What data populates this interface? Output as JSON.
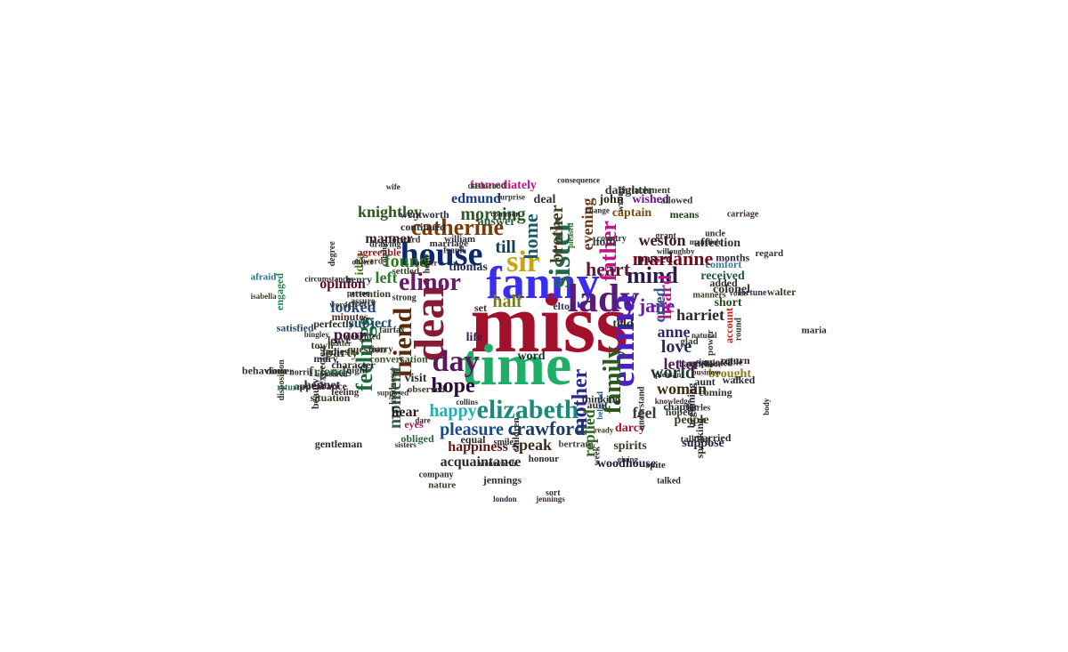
{
  "words": [
    {
      "text": "miss",
      "color": "#a3102c"
    },
    {
      "text": "time",
      "color": "#1fae66"
    },
    {
      "text": "fanny",
      "color": "#3b2df0"
    },
    {
      "text": "dear",
      "color": "#8a1a33"
    },
    {
      "text": "lady",
      "color": "#5a1a7a"
    },
    {
      "text": "house",
      "color": "#0b2a6b"
    },
    {
      "text": "sir",
      "color": "#c9a40a"
    },
    {
      "text": "emma",
      "color": "#4b1ec8"
    },
    {
      "text": "elizabeth",
      "color": "#1a8a7a"
    },
    {
      "text": "day",
      "color": "#5a1a5a"
    },
    {
      "text": "sister",
      "color": "#1f6a4a"
    },
    {
      "text": "friend",
      "color": "#5a2a0a"
    },
    {
      "text": "elinor",
      "color": "#6a1a6a"
    },
    {
      "text": "family",
      "color": "#2a5a1a"
    },
    {
      "text": "mother",
      "color": "#2a2a8a"
    },
    {
      "text": "catherine",
      "color": "#7a3a0a"
    },
    {
      "text": "feelings",
      "color": "#1a6a3a"
    },
    {
      "text": "father",
      "color": "#c0148a"
    },
    {
      "text": "mind",
      "color": "#2a1a4a"
    },
    {
      "text": "hope",
      "color": "#2a0a3a"
    },
    {
      "text": "moment",
      "color": "#3a5a4a"
    },
    {
      "text": "home",
      "color": "#1a5a6a"
    },
    {
      "text": "heart",
      "color": "#5a1a3a"
    },
    {
      "text": "marianne",
      "color": "#7a0a1a"
    },
    {
      "text": "crawford",
      "color": "#1a3a6a"
    },
    {
      "text": "jane",
      "color": "#6a1aa0"
    },
    {
      "text": "happy",
      "color": "#20b0b0"
    },
    {
      "text": "pleasure",
      "color": "#1a4a8a"
    },
    {
      "text": "replied",
      "color": "#2a6a1a"
    },
    {
      "text": "heard",
      "color": "#c0148a"
    },
    {
      "text": "brother",
      "color": "#4a3a1a"
    },
    {
      "text": "found",
      "color": "#2a7a1a"
    },
    {
      "text": "till",
      "color": "#1a3a5a"
    },
    {
      "text": "morning",
      "color": "#2a5a2a"
    },
    {
      "text": "love",
      "color": "#2a2a5a"
    },
    {
      "text": "world",
      "color": "#1a3a3a"
    },
    {
      "text": "half",
      "color": "#7a7a1a"
    },
    {
      "text": "looked",
      "color": "#2a4a8a"
    },
    {
      "text": "poor",
      "color": "#3a0a3a"
    },
    {
      "text": "left",
      "color": "#2a7a2a"
    },
    {
      "text": "speak",
      "color": "#3a2a1a"
    },
    {
      "text": "feel",
      "color": "#3a3a3a"
    },
    {
      "text": "letter",
      "color": "#5a1a5a"
    },
    {
      "text": "anne",
      "color": "#2a2a6a"
    },
    {
      "text": "harriet",
      "color": "#2a2a2a"
    },
    {
      "text": "woman",
      "color": "#3a2a0a"
    },
    {
      "text": "cried",
      "color": "#2a5a8a"
    },
    {
      "text": "weston",
      "color": "#3a1a1a"
    },
    {
      "text": "evening",
      "color": "#6a3a1a"
    },
    {
      "text": "knightley",
      "color": "#2a5a1a"
    },
    {
      "text": "manner",
      "color": "#3a1a2a"
    },
    {
      "text": "edmund",
      "color": "#1a3a8a"
    },
    {
      "text": "happiness",
      "color": "#5a1a1a"
    },
    {
      "text": "acquaintance",
      "color": "#2a2a2a"
    },
    {
      "text": "hear",
      "color": "#2a1a1a"
    },
    {
      "text": "party",
      "color": "#4a4a1a"
    },
    {
      "text": "subject",
      "color": "#1a4a6a"
    },
    {
      "text": "opinion",
      "color": "#5a0a2a"
    },
    {
      "text": "friends",
      "color": "#2a6a2a"
    },
    {
      "text": "idea",
      "color": "#4a7a1a"
    },
    {
      "text": "thomas",
      "color": "#2a2a4a"
    },
    {
      "text": "life",
      "color": "#3a1a4a"
    },
    {
      "text": "told",
      "color": "#1a3a2a"
    },
    {
      "text": "people",
      "color": "#3a3a1a"
    },
    {
      "text": "suppose",
      "color": "#2a1a3a"
    },
    {
      "text": "spirits",
      "color": "#3a3a2a"
    },
    {
      "text": "darcy",
      "color": "#a01a2a"
    },
    {
      "text": "woodhouse",
      "color": "#1a1a3a"
    },
    {
      "text": "captain",
      "color": "#7a4a0a"
    },
    {
      "text": "immediately",
      "color": "#c0148a"
    },
    {
      "text": "deal",
      "color": "#3a2a3a"
    },
    {
      "text": "answer",
      "color": "#2a5a3a"
    },
    {
      "text": "visit",
      "color": "#2a2a3a"
    },
    {
      "text": "word",
      "color": "#1a2a2a"
    },
    {
      "text": "brought",
      "color": "#8a7a1a"
    },
    {
      "text": "short",
      "color": "#2a4a1a"
    },
    {
      "text": "received",
      "color": "#1a5a3a"
    },
    {
      "text": "colonel",
      "color": "#2a3a2a"
    },
    {
      "text": "affection",
      "color": "#3a2a2a"
    },
    {
      "text": "passed",
      "color": "#3a1a3a"
    },
    {
      "text": "john",
      "color": "#2a2a1a"
    },
    {
      "text": "hour",
      "color": "#3a3a3a"
    },
    {
      "text": "daughter",
      "color": "#2a3a3a"
    },
    {
      "text": "wished",
      "color": "#6a1a8a"
    },
    {
      "text": "means",
      "color": "#1a3a1a"
    },
    {
      "text": "bennet",
      "color": "#3a1a4a"
    },
    {
      "text": "situation",
      "color": "#2a3a1a"
    },
    {
      "text": "attention",
      "color": "#3a3a2a"
    },
    {
      "text": "character",
      "color": "#2a2a2a"
    },
    {
      "text": "minutes",
      "color": "#4a2a1a"
    },
    {
      "text": "pretty",
      "color": "#3a3a3a"
    },
    {
      "text": "henry",
      "color": "#2a3a4a"
    },
    {
      "text": "chapter",
      "color": "#1a2a2a"
    },
    {
      "text": "aunt",
      "color": "#2a2a2a"
    },
    {
      "text": "coming",
      "color": "#2a3a2a"
    },
    {
      "text": "return",
      "color": "#3a1a1a"
    },
    {
      "text": "walked",
      "color": "#2a2a3a"
    },
    {
      "text": "comfort",
      "color": "#3a7a9a"
    },
    {
      "text": "added",
      "color": "#3a2a2a"
    },
    {
      "text": "account",
      "color": "#c01a1a"
    },
    {
      "text": "eyes",
      "color": "#a01a5a"
    },
    {
      "text": "obliged",
      "color": "#2a6a3a"
    },
    {
      "text": "mary",
      "color": "#2a2a5a"
    },
    {
      "text": "leave",
      "color": "#3a2a2a"
    },
    {
      "text": "ladies",
      "color": "#2a2a3a"
    },
    {
      "text": "town",
      "color": "#3a3a2a"
    },
    {
      "text": "set",
      "color": "#3a2a2a"
    },
    {
      "text": "elton",
      "color": "#3a2a4a"
    },
    {
      "text": "bingley",
      "color": "#2a3a2a"
    },
    {
      "text": "elliot",
      "color": "#2a6a3a"
    },
    {
      "text": "edward",
      "color": "#5a3a1a"
    },
    {
      "text": "frank",
      "color": "#3a2a3a"
    },
    {
      "text": "william",
      "color": "#2a2a3a"
    },
    {
      "text": "aunt",
      "color": "#2a2a2a"
    },
    {
      "text": "hoped",
      "color": "#3a3a3a"
    },
    {
      "text": "feeling",
      "color": "#3a2a2a"
    },
    {
      "text": "talked",
      "color": "#2a2a2a"
    },
    {
      "text": "person",
      "color": "#2a2a3a"
    },
    {
      "text": "dare",
      "color": "#3a1a1a"
    },
    {
      "text": "sort",
      "color": "#2a3a2a"
    },
    {
      "text": "agreeable",
      "color": "#8a1a1a"
    },
    {
      "text": "understand",
      "color": "#2a2a2a"
    },
    {
      "text": "impossible",
      "color": "#2a2a3a"
    },
    {
      "text": "manners",
      "color": "#3a3a2a"
    },
    {
      "text": "returned",
      "color": "#1a6a6a"
    },
    {
      "text": "children",
      "color": "#2a2a2a"
    },
    {
      "text": "jennings",
      "color": "#3a2a2a"
    },
    {
      "text": "regard",
      "color": "#2a3a2a"
    },
    {
      "text": "strong",
      "color": "#2a2a2a"
    },
    {
      "text": "bertram",
      "color": "#3a3a3a"
    },
    {
      "text": "london",
      "color": "#2a2a3a"
    },
    {
      "text": "object",
      "color": "#2a2a2a"
    },
    {
      "text": "dinner",
      "color": "#3a3a2a"
    },
    {
      "text": "married",
      "color": "#2a2a2a"
    },
    {
      "text": "glad",
      "color": "#2a3a2a"
    },
    {
      "text": "wife",
      "color": "#2a2a2a"
    },
    {
      "text": "believed",
      "color": "#2a5a8a"
    },
    {
      "text": "engaged",
      "color": "#1a8a4a"
    },
    {
      "text": "fairfax",
      "color": "#2a3a2a"
    },
    {
      "text": "business",
      "color": "#3a2a2a"
    },
    {
      "text": "pleased",
      "color": "#2a6a2a"
    },
    {
      "text": "head",
      "color": "#2a2a2a"
    },
    {
      "text": "matter",
      "color": "#3a3a2a"
    },
    {
      "text": "norris",
      "color": "#2a2a3a"
    },
    {
      "text": "dashwood",
      "color": "#3a5a2a"
    },
    {
      "text": "body",
      "color": "#2a2a2a"
    },
    {
      "text": "ready",
      "color": "#3a3a2a"
    },
    {
      "text": "night",
      "color": "#2a2a2a"
    },
    {
      "text": "words",
      "color": "#2a3a2a"
    },
    {
      "text": "wentworth",
      "color": "#2a2a3a"
    },
    {
      "text": "behaviour",
      "color": "#3a2a3a"
    },
    {
      "text": "satisfied",
      "color": "#2a4a6a"
    },
    {
      "text": "afraid",
      "color": "#2a6a8a"
    },
    {
      "text": "conversation",
      "color": "#3a5a2a"
    },
    {
      "text": "continued",
      "color": "#2a2a2a"
    },
    {
      "text": "perfectly",
      "color": "#2a2a2a"
    },
    {
      "text": "door",
      "color": "#3a3a2a"
    },
    {
      "text": "marriage",
      "color": "#2a2a3a"
    },
    {
      "text": "week",
      "color": "#2a2a2a"
    },
    {
      "text": "voice",
      "color": "#3a3a3a"
    },
    {
      "text": "giving",
      "color": "#3a2a2a"
    },
    {
      "text": "nature",
      "color": "#3a3a2a"
    },
    {
      "text": "country",
      "color": "#2a3a2a"
    },
    {
      "text": "mansfield",
      "color": "#2a2a3a"
    },
    {
      "text": "delighted",
      "color": "#3a2a2a"
    },
    {
      "text": "collins",
      "color": "#2a2a2a"
    },
    {
      "text": "expected",
      "color": "#3a3a2a"
    },
    {
      "text": "kindness",
      "color": "#2a3a2a"
    },
    {
      "text": "speaking",
      "color": "#2a2a2a"
    },
    {
      "text": "assure",
      "color": "#3a3a3a"
    },
    {
      "text": "surprise",
      "color": "#2a3a2a"
    },
    {
      "text": "carriage",
      "color": "#3a2a2a"
    },
    {
      "text": "change",
      "color": "#2a2a2a"
    },
    {
      "text": "talking",
      "color": "#3a3a2a"
    },
    {
      "text": "smile",
      "color": "#2a2a2a"
    },
    {
      "text": "months",
      "color": "#2a2a3a"
    },
    {
      "text": "wentworth",
      "color": "#2a2a3a"
    },
    {
      "text": "fortune",
      "color": "#3a2a4a"
    },
    {
      "text": "circumstances",
      "color": "#2a2a2a"
    },
    {
      "text": "attachment",
      "color": "#3a3a2a"
    },
    {
      "text": "conduct",
      "color": "#2a2a3a"
    },
    {
      "text": "gentleman",
      "color": "#2a2a2a"
    },
    {
      "text": "disposition",
      "color": "#3a3a2a"
    },
    {
      "text": "willoughby",
      "color": "#2a2a2a"
    },
    {
      "text": "acquainted",
      "color": "#3a2a2a"
    },
    {
      "text": "wrong",
      "color": "#2a2a2a"
    },
    {
      "text": "marry",
      "color": "#3a2a2a"
    },
    {
      "text": "honour",
      "color": "#2a2a2a"
    },
    {
      "text": "degree",
      "color": "#2a2a3a"
    },
    {
      "text": "round",
      "color": "#3a3a2a"
    },
    {
      "text": "farther",
      "color": "#2a2a2a"
    },
    {
      "text": "appearance",
      "color": "#3a2a2a"
    },
    {
      "text": "thinking",
      "color": "#2a2a2a"
    },
    {
      "text": "allowed",
      "color": "#2a3a2a"
    },
    {
      "text": "power",
      "color": "#3a3a3a"
    },
    {
      "text": "forward",
      "color": "#2a2a2a"
    },
    {
      "text": "settled",
      "color": "#3a3a2a"
    },
    {
      "text": "natural",
      "color": "#2a2a2a"
    },
    {
      "text": "hartfield",
      "color": "#2a2a3a"
    },
    {
      "text": "isabella",
      "color": "#3a3a2a"
    },
    {
      "text": "pleasant",
      "color": "#2a2a2a"
    },
    {
      "text": "knowledge",
      "color": "#3a2a2a"
    },
    {
      "text": "company",
      "color": "#2a2a2a"
    },
    {
      "text": "uncle",
      "color": "#2a2a3a"
    },
    {
      "text": "question",
      "color": "#3a3a2a"
    },
    {
      "text": "drawing",
      "color": "#2a2a2a"
    },
    {
      "text": "charles",
      "color": "#3a2a2a"
    },
    {
      "text": "consequence",
      "color": "#2a2a2a"
    },
    {
      "text": "beginning",
      "color": "#2a2a3a"
    },
    {
      "text": "supposed",
      "color": "#3a3a2a"
    },
    {
      "text": "common",
      "color": "#2a2a2a"
    },
    {
      "text": "appeared",
      "color": "#3a2a4a"
    },
    {
      "text": "beauty",
      "color": "#2a2a2a"
    },
    {
      "text": "walter",
      "color": "#3a3a2a"
    },
    {
      "text": "equal",
      "color": "#2a2a2a"
    },
    {
      "text": "grant",
      "color": "#3a2a2a"
    },
    {
      "text": "spite",
      "color": "#2a2a2a"
    },
    {
      "text": "sisters",
      "color": "#2a2a3a"
    },
    {
      "text": "observed",
      "color": "#3a3a2a"
    },
    {
      "text": "maria",
      "color": "#2a2a2a"
    },
    {
      "text": "jennings",
      "color": "#3a2a2a"
    }
  ]
}
